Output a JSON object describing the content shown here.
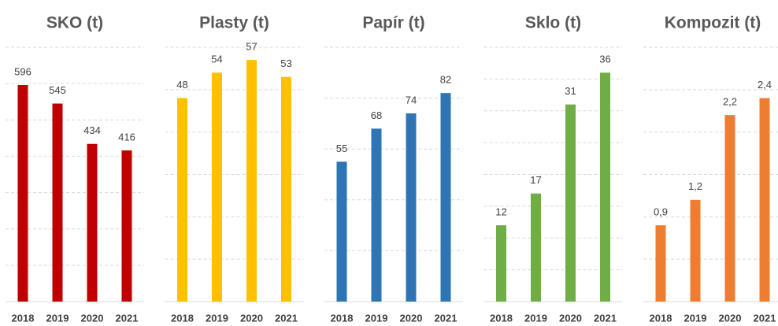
{
  "chart_data": [
    {
      "type": "bar",
      "title": "SKO (t)",
      "categories": [
        "2018",
        "2019",
        "2020",
        "2021"
      ],
      "values": [
        596,
        545,
        434,
        416
      ],
      "color": "#c00000",
      "ylim": [
        0,
        700
      ],
      "yticks": [
        0,
        100,
        200,
        300,
        400,
        500,
        600,
        700
      ],
      "grid": true
    },
    {
      "type": "bar",
      "title": "Plasty (t)",
      "categories": [
        "2018",
        "2019",
        "2020",
        "2021"
      ],
      "values": [
        48,
        54,
        57,
        53
      ],
      "color": "#ffc000",
      "ylim": [
        0,
        60
      ],
      "yticks": [
        0,
        10,
        20,
        30,
        40,
        50,
        60
      ],
      "grid": true
    },
    {
      "type": "bar",
      "title": "Papír (t)",
      "categories": [
        "2018",
        "2019",
        "2020",
        "2021"
      ],
      "values": [
        55,
        68,
        74,
        82
      ],
      "color": "#2e75b6",
      "ylim": [
        0,
        100
      ],
      "yticks": [
        0,
        20,
        40,
        60,
        80,
        100
      ],
      "grid": true
    },
    {
      "type": "bar",
      "title": "Sklo (t)",
      "categories": [
        "2018",
        "2019",
        "2020",
        "2021"
      ],
      "values": [
        12,
        17,
        31,
        36
      ],
      "color": "#70ad47",
      "ylim": [
        0,
        40
      ],
      "yticks": [
        0,
        5,
        10,
        15,
        20,
        25,
        30,
        35,
        40
      ],
      "grid": true
    },
    {
      "type": "bar",
      "title": "Kompozit (t)",
      "categories": [
        "2018",
        "2019",
        "2020",
        "2021"
      ],
      "values": [
        0.9,
        1.2,
        2.2,
        2.4
      ],
      "value_labels": [
        "0,9",
        "1,2",
        "2,2",
        "2,4"
      ],
      "color": "#ed7d31",
      "ylim": [
        0,
        3
      ],
      "yticks": [
        0,
        0.5,
        1,
        1.5,
        2,
        2.5,
        3
      ],
      "grid": true
    }
  ]
}
